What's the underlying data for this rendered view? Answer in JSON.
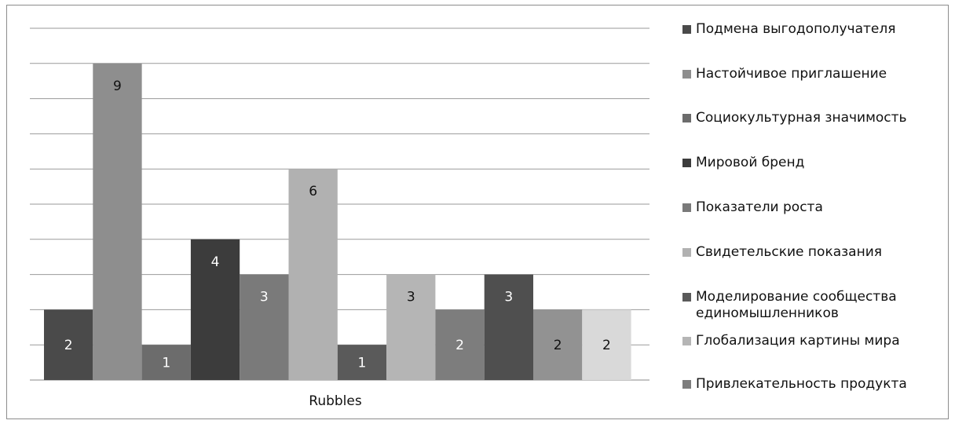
{
  "chart_data": {
    "type": "bar",
    "categories": [
      "Rubbles"
    ],
    "xlabel": "Rubbles",
    "ylabel": "",
    "ylim": [
      0,
      10
    ],
    "grid": true,
    "legend_position": "right",
    "series": [
      {
        "name": "Подмена выгодополучателя",
        "values": [
          2
        ],
        "color": "#4a4a4a"
      },
      {
        "name": "Настойчивое приглашение",
        "values": [
          9
        ],
        "color": "#8e8e8e"
      },
      {
        "name": "Социокультурная значимость",
        "values": [
          1
        ],
        "color": "#6c6c6c"
      },
      {
        "name": "Мировой бренд",
        "values": [
          4
        ],
        "color": "#3c3c3c"
      },
      {
        "name": "Показатели роста",
        "values": [
          3
        ],
        "color": "#7a7a7a"
      },
      {
        "name": "Свидетельские показания",
        "values": [
          6
        ],
        "color": "#b1b1b1"
      },
      {
        "name": "Моделирование сообщества единомышленников",
        "values": [
          1
        ],
        "color": "#5a5a5a"
      },
      {
        "name": "Глобализация картины мира",
        "values": [
          3
        ],
        "color": "#b5b5b5"
      },
      {
        "name": "Привлекательность продукта",
        "values": [
          2
        ],
        "color": "#7d7d7d"
      },
      {
        "name": "",
        "values": [
          3
        ],
        "color": "#4f4f4f"
      },
      {
        "name": "",
        "values": [
          2
        ],
        "color": "#929292"
      },
      {
        "name": "",
        "values": [
          2
        ],
        "color": "#d9d9d9"
      }
    ]
  }
}
